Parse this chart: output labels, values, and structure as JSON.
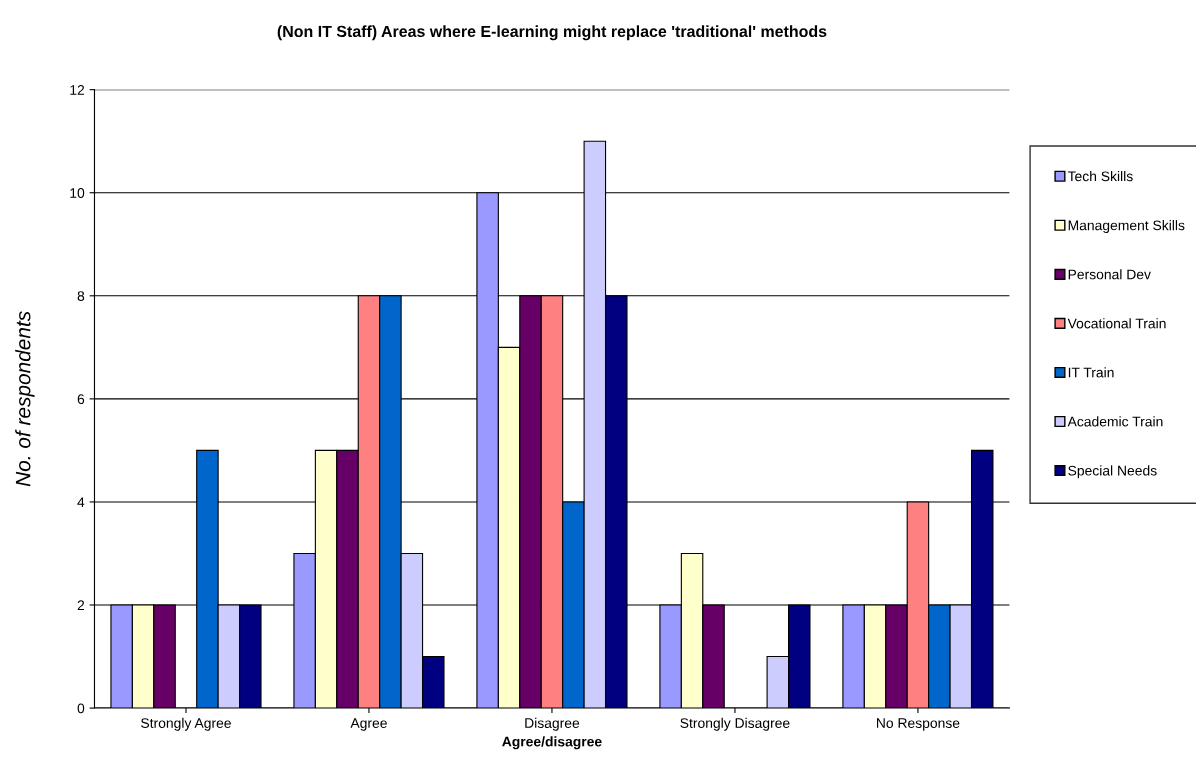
{
  "chart_data": {
    "type": "bar",
    "title": "(Non IT Staff) Areas where E-learning might replace 'traditional' methods",
    "xlabel": "Agree/disagree",
    "ylabel": "No. of respondents",
    "categories": [
      "Strongly Agree",
      "Agree",
      "Disagree",
      "Strongly Disagree",
      "No Response"
    ],
    "series": [
      {
        "name": "Tech Skills",
        "color": "#9999ff",
        "values": [
          2,
          3,
          10,
          2,
          2
        ]
      },
      {
        "name": "Management Skills",
        "color": "#ffffcc",
        "values": [
          2,
          5,
          7,
          3,
          2
        ]
      },
      {
        "name": "Personal Dev",
        "color": "#660066",
        "values": [
          2,
          5,
          8,
          2,
          2
        ]
      },
      {
        "name": "Vocational Train",
        "color": "#ff8080",
        "values": [
          0,
          8,
          8,
          0,
          4
        ]
      },
      {
        "name": "IT Train",
        "color": "#0066cc",
        "values": [
          5,
          8,
          4,
          0,
          2
        ]
      },
      {
        "name": "Academic Train",
        "color": "#ccccff",
        "values": [
          2,
          3,
          11,
          1,
          2
        ]
      },
      {
        "name": "Special Needs",
        "color": "#000080",
        "values": [
          2,
          1,
          8,
          2,
          5
        ]
      }
    ],
    "ylim": [
      0,
      12
    ],
    "yticks": [
      0,
      2,
      4,
      6,
      8,
      10,
      12
    ],
    "grid": "y",
    "legend": "right"
  }
}
